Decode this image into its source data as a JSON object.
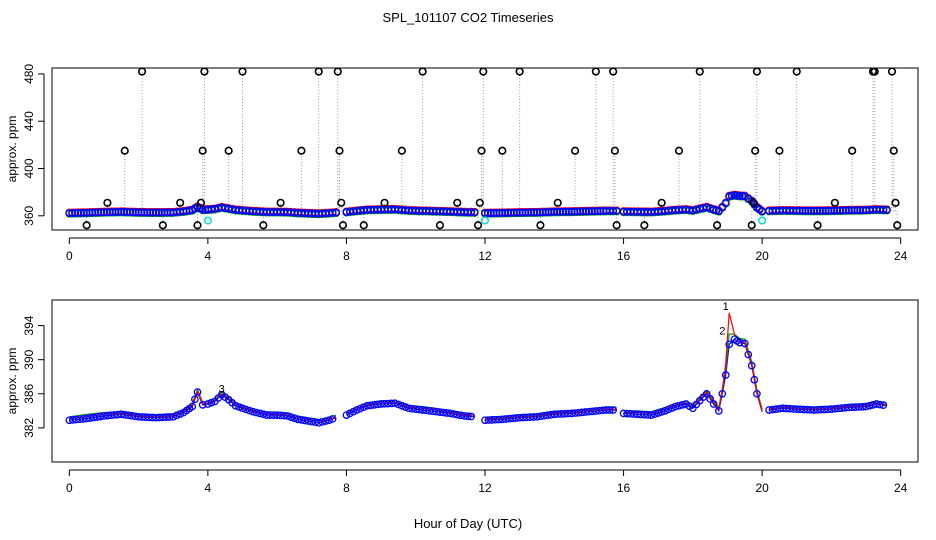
{
  "title": "SPL_101107  CO2 Timeseries",
  "xlabel": "Hour of Day (UTC)",
  "colors": {
    "outlier": "#000000",
    "blue_series": "#0000ff",
    "green_series": "#00aa00",
    "red_series": "#ff0000",
    "cyan_series": "#00dddd",
    "gap_line": "#999999"
  },
  "chart_data": [
    {
      "type": "scatter",
      "name": "top-panel",
      "ylabel": "approx. ppm",
      "xlim": [
        -0.5,
        24.5
      ],
      "ylim": [
        348,
        485
      ],
      "x_ticks": [
        "0",
        "4",
        "8",
        "12",
        "16",
        "20",
        "24"
      ],
      "y_ticks": [
        "360",
        "400",
        "440",
        "480"
      ],
      "y_tick_labels": [
        "360",
        "400",
        "440",
        "480"
      ],
      "outliers_x": [
        0.5,
        1.1,
        1.6,
        2.1,
        2.7,
        3.2,
        3.7,
        3.8,
        3.85,
        3.9,
        4.6,
        5.0,
        5.6,
        6.1,
        6.7,
        7.2,
        7.75,
        7.8,
        7.85,
        7.9,
        8.5,
        9.1,
        9.6,
        10.2,
        10.7,
        11.2,
        11.8,
        11.85,
        11.9,
        11.95,
        12.5,
        13.0,
        13.6,
        14.1,
        14.6,
        15.2,
        15.7,
        15.75,
        15.8,
        16.6,
        17.1,
        17.6,
        18.2,
        18.7,
        19.7,
        19.75,
        19.8,
        19.85,
        20.5,
        21.0,
        21.6,
        22.1,
        22.6,
        23.2,
        23.25,
        23.75,
        23.8,
        23.85,
        23.9
      ],
      "outliers_y": [
        352,
        371,
        415,
        482,
        352,
        371,
        352,
        371,
        415,
        482,
        415,
        482,
        352,
        371,
        415,
        482,
        482,
        415,
        371,
        352,
        352,
        371,
        415,
        482,
        352,
        371,
        352,
        371,
        415,
        482,
        415,
        482,
        352,
        371,
        415,
        482,
        482,
        415,
        352,
        352,
        371,
        415,
        482,
        352,
        352,
        371,
        415,
        482,
        415,
        482,
        352,
        371,
        415,
        482,
        482,
        482,
        415,
        371,
        352
      ],
      "cyan_x": [
        4.0,
        12.0,
        20.0
      ],
      "cyan_y": [
        356,
        356,
        356
      ]
    },
    {
      "type": "line",
      "name": "bottom-panel",
      "ylabel": "approx. ppm",
      "xlim": [
        -0.5,
        24.5
      ],
      "ylim": [
        378,
        397
      ],
      "x_ticks": [
        "0",
        "4",
        "8",
        "12",
        "16",
        "20",
        "24"
      ],
      "y_ticks": [
        "382",
        "386",
        "390",
        "394"
      ],
      "y_tick_labels": [
        "382",
        "386",
        "390",
        "394"
      ],
      "series_labels": [
        "1",
        "2",
        "3"
      ],
      "x": [
        0,
        0.5,
        1,
        1.5,
        2,
        2.5,
        3,
        3.3,
        3.55,
        3.7,
        3.85,
        4.0,
        4.2,
        4.4,
        4.6,
        4.8,
        5.0,
        5.3,
        5.7,
        6.0,
        6.3,
        6.6,
        6.9,
        7.2,
        7.5,
        7.7,
        null,
        8.0,
        8.3,
        8.6,
        9.0,
        9.4,
        9.8,
        10.2,
        10.6,
        11.0,
        11.4,
        11.7,
        null,
        12.0,
        12.5,
        13.0,
        13.5,
        14.0,
        14.5,
        15.0,
        15.5,
        15.8,
        null,
        16.0,
        16.4,
        16.8,
        17.2,
        17.5,
        17.8,
        18.0,
        18.2,
        18.4,
        18.6,
        18.75,
        18.85,
        18.95,
        19.05,
        19.2,
        19.35,
        19.5,
        19.7,
        19.85,
        20.0,
        null,
        20.2,
        20.6,
        21.0,
        21.5,
        22.0,
        22.5,
        23.0,
        23.3,
        23.6
      ],
      "series": [
        {
          "name": "blue",
          "values": [
            382.9,
            383.1,
            383.4,
            383.6,
            383.3,
            383.2,
            383.3,
            383.8,
            384.5,
            386.2,
            384.7,
            384.8,
            385.1,
            385.9,
            385.3,
            384.6,
            384.3,
            383.9,
            383.5,
            383.5,
            383.4,
            383.0,
            382.8,
            382.6,
            382.9,
            383.2,
            null,
            383.5,
            384.1,
            384.6,
            384.8,
            384.9,
            384.3,
            384.1,
            383.9,
            383.7,
            383.4,
            383.3,
            null,
            382.9,
            383.0,
            383.2,
            383.3,
            383.6,
            383.7,
            383.9,
            384.1,
            384.1,
            null,
            383.7,
            383.6,
            383.5,
            384.0,
            384.5,
            384.8,
            384.3,
            385.2,
            386.0,
            384.8,
            384.0,
            386.0,
            388.2,
            391.8,
            392.4,
            392.0,
            391.9,
            389.3,
            386.0,
            383.9,
            null,
            384.1,
            384.3,
            384.2,
            384.1,
            384.2,
            384.4,
            384.5,
            384.8,
            384.6
          ]
        },
        {
          "name": "green",
          "values": [
            383.3,
            383.6,
            383.8,
            383.8,
            383.6,
            383.5,
            383.6,
            384.1,
            384.9,
            386.5,
            385.0,
            385.1,
            385.4,
            386.2,
            385.6,
            385.0,
            384.6,
            384.2,
            383.9,
            383.8,
            383.7,
            383.4,
            383.2,
            383.0,
            383.2,
            383.5,
            null,
            383.9,
            384.5,
            384.9,
            385.2,
            385.2,
            384.6,
            384.5,
            384.3,
            384.0,
            383.7,
            383.6,
            null,
            383.2,
            383.3,
            383.5,
            383.6,
            383.9,
            384.0,
            384.2,
            384.4,
            384.4,
            null,
            384.0,
            384.0,
            383.9,
            384.4,
            384.9,
            385.1,
            384.7,
            385.6,
            386.4,
            385.2,
            384.4,
            386.6,
            389.0,
            393.0,
            393.0,
            392.5,
            392.4,
            389.8,
            386.5,
            384.2,
            null,
            384.4,
            384.6,
            384.5,
            384.4,
            384.5,
            384.7,
            384.8,
            385.1,
            384.9
          ]
        },
        {
          "name": "red",
          "values": [
            383.1,
            383.3,
            383.6,
            383.7,
            383.4,
            383.3,
            383.4,
            383.9,
            384.7,
            386.3,
            384.8,
            384.9,
            385.2,
            386.0,
            385.4,
            384.8,
            384.4,
            384.0,
            383.7,
            383.6,
            383.5,
            383.2,
            383.0,
            382.8,
            383.0,
            383.3,
            null,
            383.7,
            384.3,
            384.7,
            385.0,
            385.0,
            384.4,
            384.3,
            384.1,
            383.8,
            383.5,
            383.4,
            null,
            383.0,
            383.1,
            383.3,
            383.4,
            383.7,
            383.8,
            384.0,
            384.2,
            384.2,
            null,
            383.8,
            383.8,
            383.7,
            384.2,
            384.7,
            384.9,
            384.5,
            385.4,
            386.2,
            385.0,
            384.2,
            386.3,
            389.5,
            395.5,
            393.0,
            392.2,
            392.1,
            389.5,
            386.2,
            384.0,
            null,
            384.2,
            384.4,
            384.3,
            384.2,
            384.3,
            384.5,
            384.6,
            384.9,
            384.7
          ]
        }
      ]
    }
  ]
}
